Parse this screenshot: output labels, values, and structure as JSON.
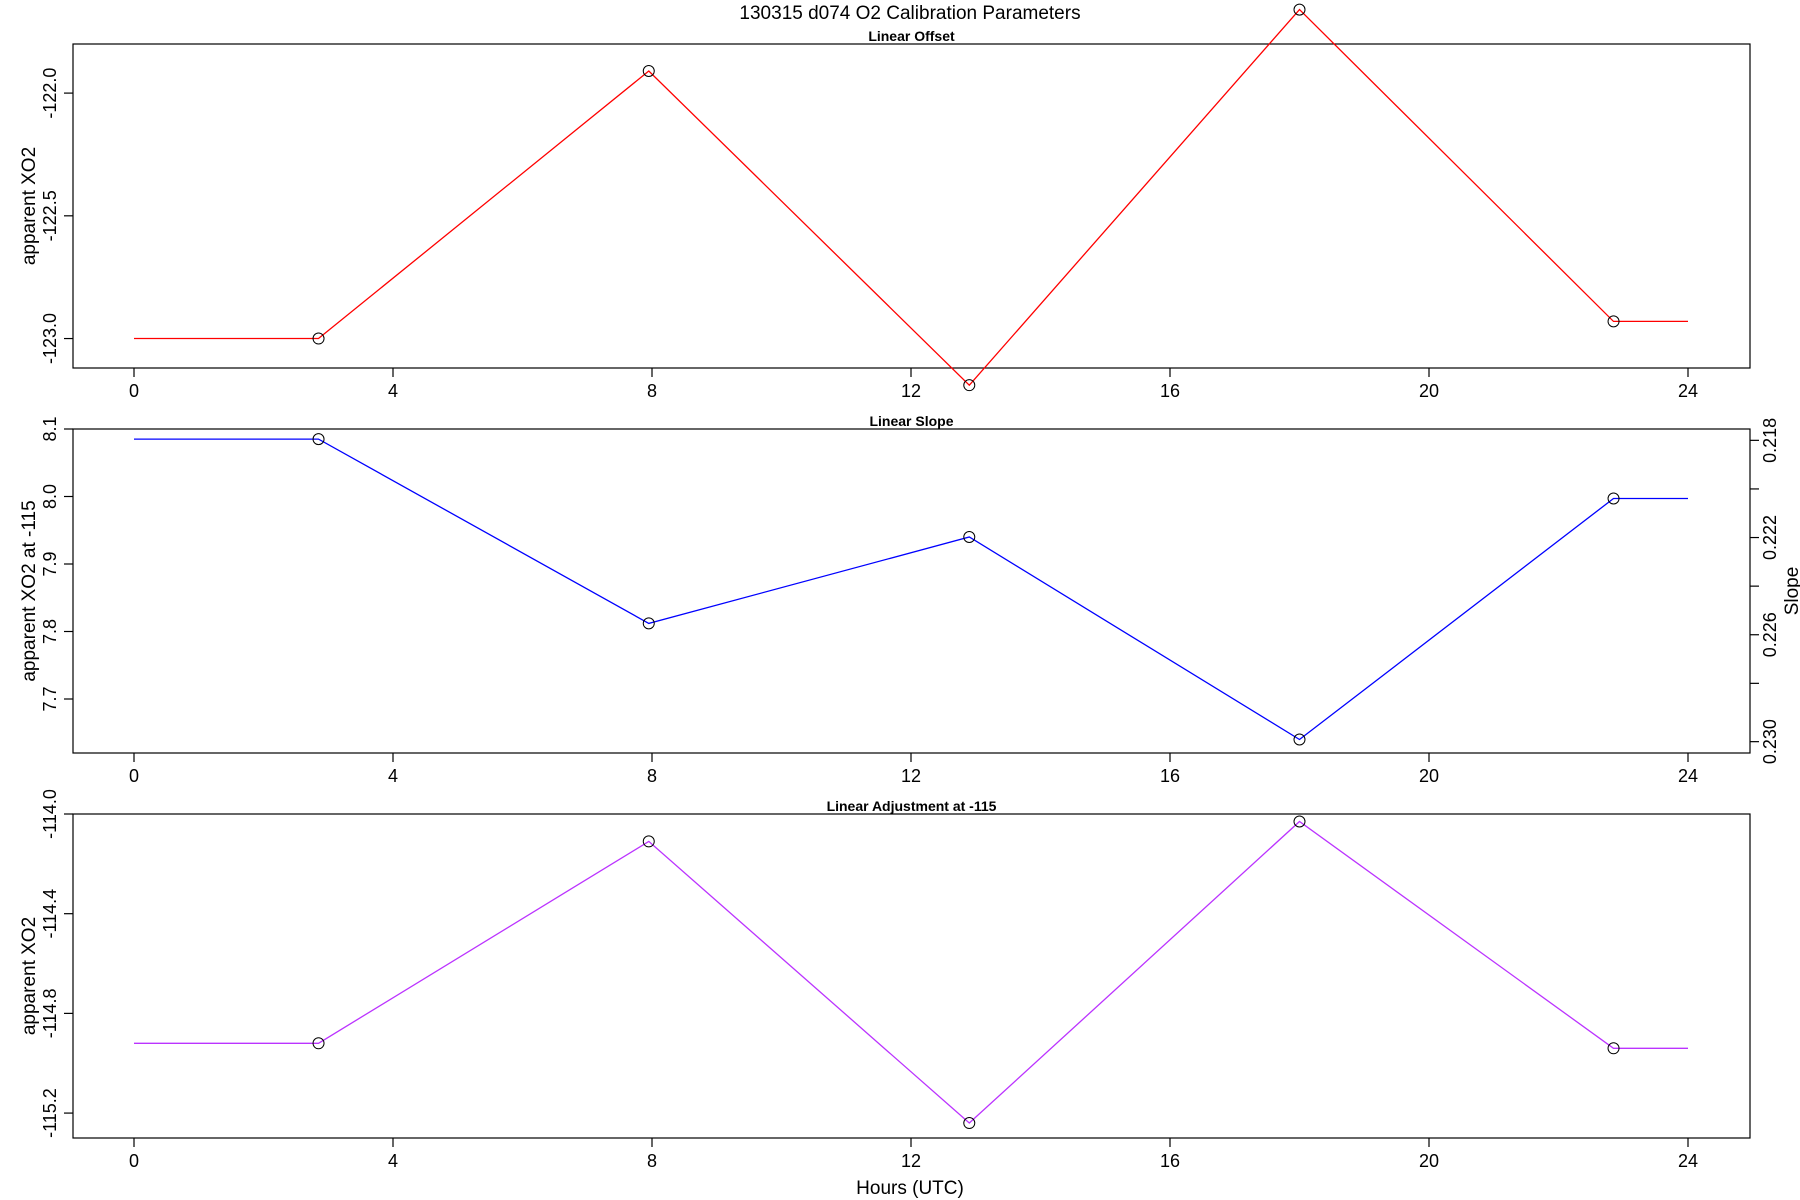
{
  "figure": {
    "title": "130315   d074   O2 Calibration Parameters",
    "xlabel": "Hours (UTC)"
  },
  "chart_data": [
    {
      "type": "line",
      "title": "Linear Offset",
      "xlabel": "",
      "ylabel": "apparent XO2",
      "color": "#ff0000",
      "xlim": [
        0,
        24
      ],
      "ylim": [
        -123.12,
        -121.8
      ],
      "x_ticks": [
        0,
        4,
        8,
        12,
        16,
        20,
        24
      ],
      "y_ticks": [
        "-123.0",
        "-122.5",
        "-122.0"
      ],
      "x": [
        2.85,
        7.95,
        12.9,
        18.0,
        22.85
      ],
      "y": [
        -123.0,
        -121.91,
        -123.19,
        -121.66,
        -122.93
      ],
      "extend_from": 0,
      "extend_to": 24,
      "marker": "open-circle",
      "grid": false
    },
    {
      "type": "line",
      "title": "Linear Slope",
      "xlabel": "",
      "ylabel": "apparent XO2 at -115",
      "ylabel_right": "Slope",
      "color": "#0000ff",
      "xlim": [
        0,
        24
      ],
      "ylim": [
        7.62,
        8.1
      ],
      "x_ticks": [
        0,
        4,
        8,
        12,
        16,
        20,
        24
      ],
      "y_ticks": [
        "7.7",
        "7.8",
        "7.9",
        "8.0",
        "8.1"
      ],
      "y_right_ticks": [
        "0.218",
        "0.222",
        "0.226",
        "0.230"
      ],
      "x": [
        2.85,
        7.95,
        12.9,
        18.0,
        22.85
      ],
      "y": [
        8.085,
        7.812,
        7.94,
        7.64,
        7.997
      ],
      "extend_from": 0,
      "extend_to": 24,
      "marker": "open-circle",
      "grid": false
    },
    {
      "type": "line",
      "title": "Linear Adjustment at -115",
      "xlabel": "Hours (UTC)",
      "ylabel": "apparent XO2",
      "color": "#bb33ff",
      "xlim": [
        0,
        24
      ],
      "ylim": [
        -115.3,
        -114.0
      ],
      "x_ticks": [
        0,
        4,
        8,
        12,
        16,
        20,
        24
      ],
      "y_ticks": [
        "-115.2",
        "-114.8",
        "-114.4",
        "-114.0"
      ],
      "x": [
        2.85,
        7.95,
        12.9,
        18.0,
        22.85
      ],
      "y": [
        -114.92,
        -114.11,
        -115.24,
        -114.03,
        -114.94
      ],
      "extend_from": 0,
      "extend_to": 24,
      "marker": "open-circle",
      "grid": false
    }
  ]
}
